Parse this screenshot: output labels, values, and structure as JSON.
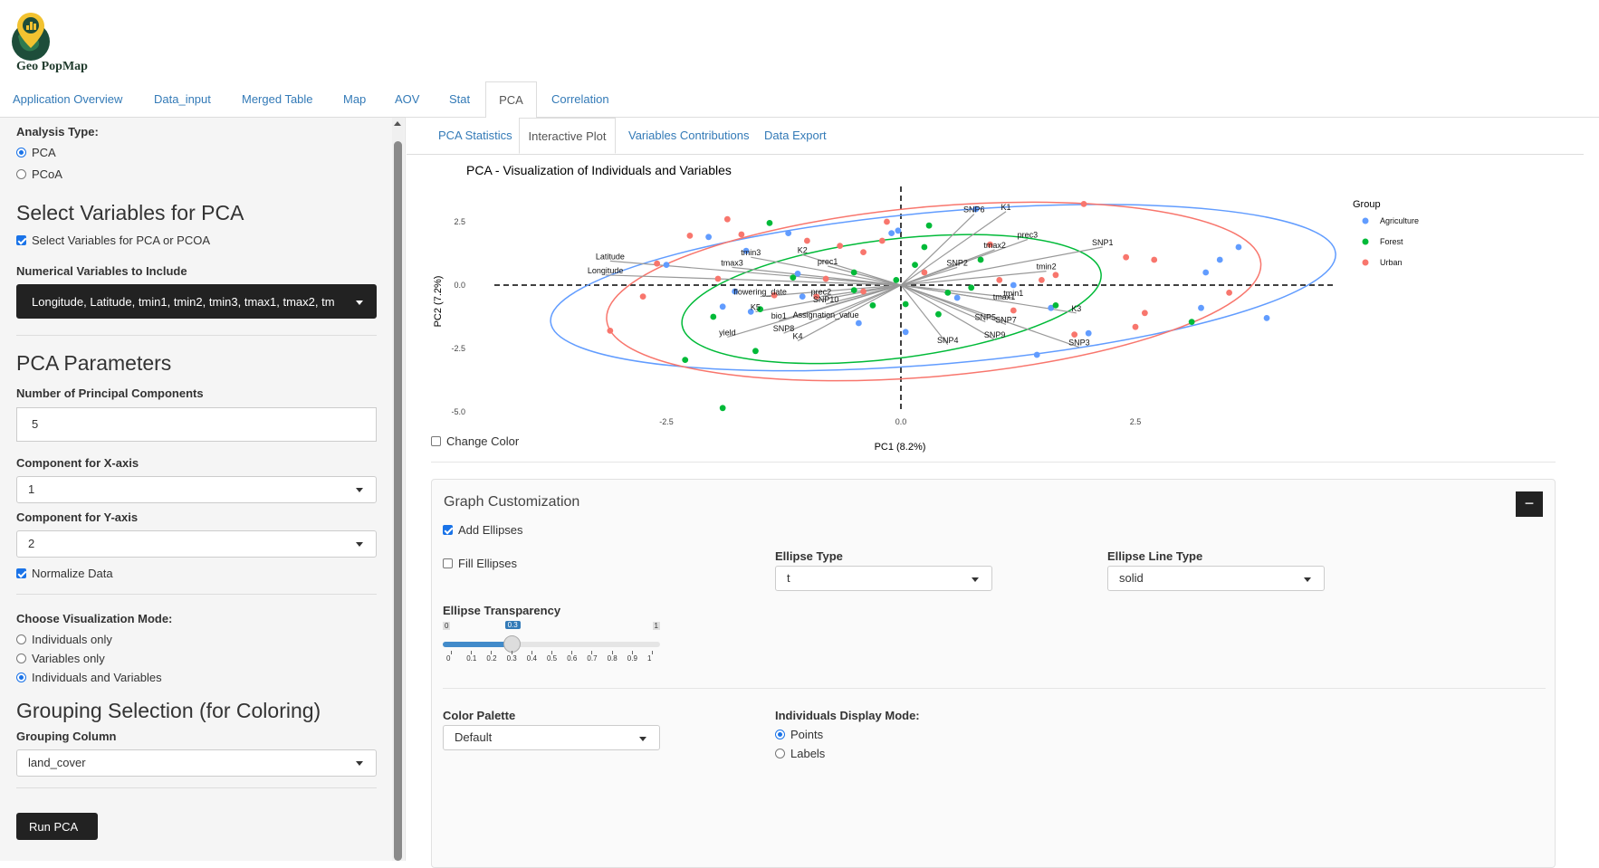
{
  "app": {
    "title": "Geo PopMap"
  },
  "nav": {
    "tabs": [
      "Application Overview",
      "Data_input",
      "Merged Table",
      "Map",
      "AOV",
      "Stat",
      "PCA",
      "Correlation"
    ],
    "active": "PCA"
  },
  "sidebar": {
    "analysis_type_label": "Analysis Type:",
    "analysis_options": [
      "PCA",
      "PCoA"
    ],
    "select_vars_title": "Select Variables for PCA",
    "select_vars_checkbox": "Select Variables for PCA or PCOA",
    "numerical_vars_label": "Numerical Variables to Include",
    "numerical_vars_value": "Longitude, Latitude, tmin1, tmin2, tmin3, tmax1, tmax2, tm",
    "pca_params_title": "PCA Parameters",
    "num_components_label": "Number of Principal Components",
    "num_components_value": "5",
    "x_comp_label": "Component for X-axis",
    "x_comp_value": "1",
    "y_comp_label": "Component for Y-axis",
    "y_comp_value": "2",
    "normalize_label": "Normalize Data",
    "viz_mode_label": "Choose Visualization Mode:",
    "viz_options": [
      "Individuals only",
      "Variables only",
      "Individuals and Variables"
    ],
    "grouping_title": "Grouping Selection (for Coloring)",
    "grouping_col_label": "Grouping Column",
    "grouping_col_value": "land_cover",
    "run_button": "Run PCA"
  },
  "subtabs": {
    "items": [
      "PCA Statistics",
      "Interactive Plot",
      "Variables Contributions",
      "Data Export"
    ],
    "active": "Interactive Plot"
  },
  "change_color_label": "Change Color",
  "customization": {
    "title": "Graph Customization",
    "collapse_symbol": "−",
    "add_ellipses": "Add Ellipses",
    "fill_ellipses": "Fill Ellipses",
    "ellipse_type_label": "Ellipse Type",
    "ellipse_type_value": "t",
    "ellipse_line_label": "Ellipse Line Type",
    "ellipse_line_value": "solid",
    "transparency_label": "Ellipse Transparency",
    "transparency": {
      "min": "0",
      "max": "1",
      "value": "0.3",
      "ticks": [
        "0",
        "0.1",
        "0.2",
        "0.3",
        "0.4",
        "0.5",
        "0.6",
        "0.7",
        "0.8",
        "0.9",
        "1"
      ]
    },
    "palette_label": "Color Palette",
    "palette_value": "Default",
    "display_mode_label": "Individuals Display Mode:",
    "display_options": [
      "Points",
      "Labels"
    ]
  },
  "colors": {
    "Agriculture": "#619CFF",
    "Forest": "#00BA38",
    "Urban": "#F8766D",
    "accent": "#337ab7"
  },
  "chart_data": {
    "type": "scatter",
    "title": "PCA - Visualization of Individuals and Variables",
    "xlabel": "PC1 (8.2%)",
    "ylabel": "PC2 (7.2%)",
    "xlim": [
      -3.5,
      4.6
    ],
    "ylim": [
      -5.3,
      3.8
    ],
    "xticks": [
      "-2.5",
      "0.0",
      "2.5"
    ],
    "yticks": [
      "2.5",
      "0.0",
      "-2.5",
      "-5.0"
    ],
    "legend": {
      "title": "Group",
      "entries": [
        "Agriculture",
        "Forest",
        "Urban"
      ],
      "placement": "right"
    },
    "points": [
      {
        "g": "Agriculture",
        "x": -2.05,
        "y": 1.9
      },
      {
        "g": "Agriculture",
        "x": -1.65,
        "y": 1.35
      },
      {
        "g": "Agriculture",
        "x": -1.2,
        "y": 2.05
      },
      {
        "g": "Agriculture",
        "x": -2.5,
        "y": 0.8
      },
      {
        "g": "Agriculture",
        "x": -1.77,
        "y": -0.25
      },
      {
        "g": "Agriculture",
        "x": -1.6,
        "y": -1.05
      },
      {
        "g": "Agriculture",
        "x": -1.1,
        "y": 0.45
      },
      {
        "g": "Agriculture",
        "x": -1.05,
        "y": -0.45
      },
      {
        "g": "Agriculture",
        "x": -0.1,
        "y": 2.05
      },
      {
        "g": "Agriculture",
        "x": -0.03,
        "y": 2.15
      },
      {
        "g": "Agriculture",
        "x": 0.05,
        "y": -1.85
      },
      {
        "g": "Agriculture",
        "x": 0.8,
        "y": 3.0
      },
      {
        "g": "Agriculture",
        "x": 1.2,
        "y": 0.0
      },
      {
        "g": "Agriculture",
        "x": 1.45,
        "y": -2.75
      },
      {
        "g": "Agriculture",
        "x": 2.0,
        "y": -1.9
      },
      {
        "g": "Agriculture",
        "x": 3.25,
        "y": 0.5
      },
      {
        "g": "Agriculture",
        "x": 3.4,
        "y": 1.0
      },
      {
        "g": "Agriculture",
        "x": 3.6,
        "y": 1.5
      },
      {
        "g": "Agriculture",
        "x": 3.2,
        "y": -0.9
      },
      {
        "g": "Agriculture",
        "x": 3.9,
        "y": -1.3
      },
      {
        "g": "Agriculture",
        "x": 1.6,
        "y": -0.9
      },
      {
        "g": "Agriculture",
        "x": -1.9,
        "y": -0.85
      },
      {
        "g": "Agriculture",
        "x": -0.45,
        "y": -1.5
      },
      {
        "g": "Agriculture",
        "x": 0.6,
        "y": -0.5
      },
      {
        "g": "Forest",
        "x": -1.4,
        "y": 2.45
      },
      {
        "g": "Forest",
        "x": 0.3,
        "y": 2.35
      },
      {
        "g": "Forest",
        "x": 0.25,
        "y": 1.5
      },
      {
        "g": "Forest",
        "x": 0.15,
        "y": 0.8
      },
      {
        "g": "Forest",
        "x": 0.85,
        "y": 1.0
      },
      {
        "g": "Forest",
        "x": -0.5,
        "y": 0.5
      },
      {
        "g": "Forest",
        "x": -1.5,
        "y": -0.95
      },
      {
        "g": "Forest",
        "x": -2.0,
        "y": -1.25
      },
      {
        "g": "Forest",
        "x": -1.55,
        "y": -2.6
      },
      {
        "g": "Forest",
        "x": -2.3,
        "y": -2.95
      },
      {
        "g": "Forest",
        "x": -1.9,
        "y": -4.85
      },
      {
        "g": "Forest",
        "x": 0.4,
        "y": -1.15
      },
      {
        "g": "Forest",
        "x": 0.05,
        "y": -0.75
      },
      {
        "g": "Forest",
        "x": 0.5,
        "y": -0.3
      },
      {
        "g": "Forest",
        "x": 0.75,
        "y": -0.1
      },
      {
        "g": "Forest",
        "x": -0.3,
        "y": -0.8
      },
      {
        "g": "Forest",
        "x": 1.65,
        "y": -0.8
      },
      {
        "g": "Forest",
        "x": 3.1,
        "y": -1.45
      },
      {
        "g": "Forest",
        "x": -0.05,
        "y": 0.2
      },
      {
        "g": "Forest",
        "x": -1.15,
        "y": 0.3
      },
      {
        "g": "Forest",
        "x": -0.5,
        "y": -0.2
      },
      {
        "g": "Urban",
        "x": -2.25,
        "y": 1.95
      },
      {
        "g": "Urban",
        "x": -1.85,
        "y": 2.6
      },
      {
        "g": "Urban",
        "x": -1.7,
        "y": 2.0
      },
      {
        "g": "Urban",
        "x": -1.0,
        "y": 1.75
      },
      {
        "g": "Urban",
        "x": -0.65,
        "y": 1.55
      },
      {
        "g": "Urban",
        "x": -0.4,
        "y": 1.3
      },
      {
        "g": "Urban",
        "x": -0.2,
        "y": 1.75
      },
      {
        "g": "Urban",
        "x": -0.15,
        "y": 2.5
      },
      {
        "g": "Urban",
        "x": -2.6,
        "y": 0.85
      },
      {
        "g": "Urban",
        "x": -2.75,
        "y": -0.45
      },
      {
        "g": "Urban",
        "x": -3.1,
        "y": -1.8
      },
      {
        "g": "Urban",
        "x": -1.95,
        "y": 0.25
      },
      {
        "g": "Urban",
        "x": -1.35,
        "y": -0.4
      },
      {
        "g": "Urban",
        "x": -0.9,
        "y": -0.45
      },
      {
        "g": "Urban",
        "x": -0.8,
        "y": 0.25
      },
      {
        "g": "Urban",
        "x": -0.4,
        "y": -0.25
      },
      {
        "g": "Urban",
        "x": 0.25,
        "y": 0.5
      },
      {
        "g": "Urban",
        "x": 0.95,
        "y": 1.6
      },
      {
        "g": "Urban",
        "x": 1.5,
        "y": 0.2
      },
      {
        "g": "Urban",
        "x": 1.65,
        "y": 0.4
      },
      {
        "g": "Urban",
        "x": 1.2,
        "y": -1.0
      },
      {
        "g": "Urban",
        "x": 1.95,
        "y": 3.2
      },
      {
        "g": "Urban",
        "x": 2.4,
        "y": 1.1
      },
      {
        "g": "Urban",
        "x": 2.7,
        "y": 1.0
      },
      {
        "g": "Urban",
        "x": 2.6,
        "y": -1.1
      },
      {
        "g": "Urban",
        "x": 2.5,
        "y": -1.65
      },
      {
        "g": "Urban",
        "x": 1.85,
        "y": -1.95
      },
      {
        "g": "Urban",
        "x": 3.5,
        "y": -0.3
      },
      {
        "g": "Urban",
        "x": 1.05,
        "y": 0.2
      }
    ],
    "variables": [
      {
        "n": "SNP6",
        "x": 0.78,
        "y": 2.8
      },
      {
        "n": "K1",
        "x": 1.12,
        "y": 2.9
      },
      {
        "n": "prec3",
        "x": 1.35,
        "y": 1.8
      },
      {
        "n": "SNP1",
        "x": 2.15,
        "y": 1.5
      },
      {
        "n": "tmax2",
        "x": 1.0,
        "y": 1.4
      },
      {
        "n": "SNP2",
        "x": 0.6,
        "y": 0.7
      },
      {
        "n": "tmin2",
        "x": 1.55,
        "y": 0.55
      },
      {
        "n": "tmin1",
        "x": 1.2,
        "y": -0.5
      },
      {
        "n": "tmax1",
        "x": 1.1,
        "y": -0.65
      },
      {
        "n": "K3",
        "x": 1.87,
        "y": -1.1
      },
      {
        "n": "SNP3",
        "x": 1.9,
        "y": -2.45
      },
      {
        "n": "SNP7",
        "x": 1.12,
        "y": -1.55
      },
      {
        "n": "SNP5",
        "x": 0.9,
        "y": -1.45
      },
      {
        "n": "SNP9",
        "x": 1.0,
        "y": -2.15
      },
      {
        "n": "SNP4",
        "x": 0.5,
        "y": -2.35
      },
      {
        "n": "K4",
        "x": -1.1,
        "y": -2.2
      },
      {
        "n": "SNP8",
        "x": -1.25,
        "y": -1.9
      },
      {
        "n": "Assignation_value",
        "x": -0.8,
        "y": -1.35
      },
      {
        "n": "bio1",
        "x": -1.3,
        "y": -1.4
      },
      {
        "n": "SNP10",
        "x": -0.8,
        "y": -0.75
      },
      {
        "n": "prec2",
        "x": -0.85,
        "y": -0.45
      },
      {
        "n": "flowering_date",
        "x": -1.5,
        "y": -0.45
      },
      {
        "n": "K5",
        "x": -1.55,
        "y": -1.05
      },
      {
        "n": "yield",
        "x": -1.85,
        "y": -2.05
      },
      {
        "n": "prec1",
        "x": -0.78,
        "y": 0.75
      },
      {
        "n": "K2",
        "x": -1.05,
        "y": 1.2
      },
      {
        "n": "tmin3",
        "x": -1.6,
        "y": 1.1
      },
      {
        "n": "tmax3",
        "x": -1.8,
        "y": 0.7
      },
      {
        "n": "Latitude",
        "x": -3.1,
        "y": 0.95
      },
      {
        "n": "Longitude",
        "x": -3.15,
        "y": 0.4
      }
    ],
    "ellipses": [
      {
        "g": "Agriculture",
        "cx": 0.45,
        "cy": -0.1,
        "rx": 4.2,
        "ry": 3.0,
        "rot": -5
      },
      {
        "g": "Urban",
        "cx": 0.35,
        "cy": -0.25,
        "rx": 3.5,
        "ry": 3.35,
        "rot": -5
      },
      {
        "g": "Forest",
        "cx": -0.1,
        "cy": -0.55,
        "rx": 2.25,
        "ry": 2.35,
        "rot": -7
      }
    ]
  }
}
